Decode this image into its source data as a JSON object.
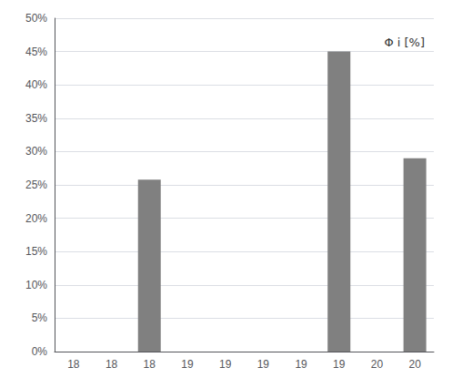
{
  "chart_data": {
    "type": "bar",
    "categories": [
      "18",
      "18",
      "18",
      "19",
      "19",
      "19",
      "19",
      "19",
      "20",
      "20"
    ],
    "values": [
      0,
      0,
      0.258,
      0,
      0,
      0,
      0,
      0.45,
      0,
      0.29
    ],
    "color": "#808080",
    "ylim": [
      0,
      0.5
    ],
    "yticks": [
      {
        "value": 0.0,
        "label": "0%"
      },
      {
        "value": 0.05,
        "label": "5%"
      },
      {
        "value": 0.1,
        "label": "10%"
      },
      {
        "value": 0.15,
        "label": "15%"
      },
      {
        "value": 0.2,
        "label": "20%"
      },
      {
        "value": 0.25,
        "label": "25%"
      },
      {
        "value": 0.3,
        "label": "30%"
      },
      {
        "value": 0.35,
        "label": "35%"
      },
      {
        "value": 0.4,
        "label": "40%"
      },
      {
        "value": 0.45,
        "label": "45%"
      },
      {
        "value": 0.5,
        "label": "50%"
      }
    ],
    "annotation": "Φ i [%]",
    "grid": true
  }
}
